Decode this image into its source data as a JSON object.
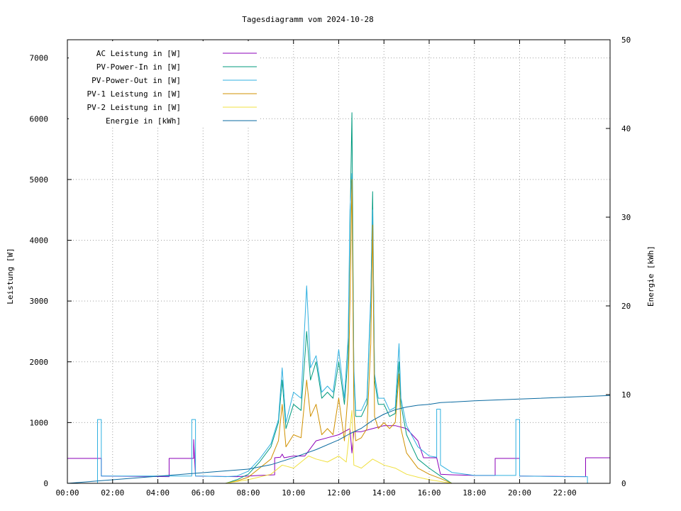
{
  "chart_data": {
    "type": "line",
    "title": "Tagesdiagramm vom 2024-10-28",
    "ylabel": "Leistung [W]",
    "y2label": "Energie [kWh]",
    "xlim": [
      "00:00",
      "24:00"
    ],
    "ylim": [
      0,
      7300
    ],
    "y2lim": [
      0,
      50
    ],
    "xticks": [
      "00:00",
      "02:00",
      "04:00",
      "06:00",
      "08:00",
      "10:00",
      "12:00",
      "14:00",
      "16:00",
      "18:00",
      "20:00",
      "22:00"
    ],
    "yticks": [
      0,
      1000,
      2000,
      3000,
      4000,
      5000,
      6000,
      7000
    ],
    "y2ticks": [
      0,
      10,
      20,
      30,
      40,
      50
    ],
    "grid": true,
    "legend_position": "top-left",
    "series": [
      {
        "name": "AC Leistung in [W]",
        "color": "#8b00b8",
        "axis": "y",
        "x": [
          "00:00",
          "01:30",
          "01:30",
          "01:35",
          "04:30",
          "04:30",
          "05:30",
          "05:35",
          "05:35",
          "05:40",
          "07:30",
          "08:30",
          "09:10",
          "09:10",
          "09:25",
          "09:30",
          "09:35",
          "10:00",
          "10:30",
          "11:00",
          "11:30",
          "12:00",
          "12:30",
          "12:35",
          "12:40",
          "13:00",
          "13:30",
          "14:00",
          "14:30",
          "15:00",
          "15:30",
          "15:45",
          "16:10",
          "16:20",
          "16:30",
          "17:00",
          "18:00",
          "18:55",
          "18:55",
          "20:00",
          "20:00",
          "20:05",
          "22:55",
          "22:55",
          "24:00"
        ],
        "y": [
          410,
          410,
          120,
          120,
          110,
          410,
          410,
          410,
          720,
          120,
          110,
          130,
          140,
          420,
          430,
          480,
          420,
          450,
          450,
          700,
          750,
          800,
          900,
          500,
          850,
          850,
          900,
          950,
          950,
          900,
          700,
          420,
          420,
          420,
          150,
          140,
          130,
          130,
          410,
          410,
          120,
          120,
          110,
          420,
          420
        ]
      },
      {
        "name": "PV-Power-In in [W]",
        "color": "#009a7e",
        "axis": "y",
        "x": [
          "00:00",
          "07:00",
          "07:30",
          "08:00",
          "08:30",
          "09:00",
          "09:20",
          "09:30",
          "09:40",
          "10:00",
          "10:20",
          "10:35",
          "10:45",
          "11:00",
          "11:15",
          "11:30",
          "11:45",
          "12:00",
          "12:15",
          "12:25",
          "12:30",
          "12:35",
          "12:40",
          "12:45",
          "13:00",
          "13:15",
          "13:25",
          "13:30",
          "13:35",
          "13:45",
          "14:00",
          "14:15",
          "14:30",
          "14:40",
          "14:45",
          "15:00",
          "15:30",
          "16:00",
          "16:30",
          "17:00",
          "24:00"
        ],
        "y": [
          0,
          0,
          60,
          150,
          350,
          600,
          1000,
          1700,
          900,
          1300,
          1200,
          2500,
          1700,
          2000,
          1400,
          1500,
          1400,
          2000,
          1300,
          2100,
          4200,
          6100,
          1800,
          1100,
          1100,
          1300,
          3000,
          4800,
          1700,
          1300,
          1300,
          1100,
          1150,
          2000,
          1300,
          800,
          400,
          250,
          120,
          0,
          0
        ]
      },
      {
        "name": "PV-Power-Out in [W]",
        "color": "#30b0e0",
        "axis": "y",
        "x": [
          "00:00",
          "01:20",
          "01:20",
          "01:25",
          "01:30",
          "01:30",
          "01:35",
          "05:30",
          "05:30",
          "05:35",
          "05:40",
          "05:40",
          "06:00",
          "07:00",
          "07:30",
          "08:00",
          "08:30",
          "09:00",
          "09:20",
          "09:30",
          "09:40",
          "10:00",
          "10:20",
          "10:35",
          "10:45",
          "11:00",
          "11:15",
          "11:30",
          "11:45",
          "12:00",
          "12:15",
          "12:25",
          "12:30",
          "12:35",
          "12:40",
          "12:45",
          "13:00",
          "13:15",
          "13:25",
          "13:30",
          "13:35",
          "13:45",
          "14:00",
          "14:15",
          "14:30",
          "14:40",
          "14:45",
          "15:00",
          "15:30",
          "16:00",
          "16:20",
          "16:20",
          "16:25",
          "16:30",
          "16:30",
          "17:00",
          "18:00",
          "19:50",
          "19:50",
          "19:55",
          "20:00",
          "20:00",
          "22:00",
          "23:00",
          "23:00",
          "24:00"
        ],
        "y": [
          0,
          0,
          1050,
          1050,
          1050,
          120,
          120,
          120,
          1050,
          1050,
          1050,
          120,
          120,
          110,
          120,
          200,
          400,
          650,
          1050,
          1900,
          1000,
          1500,
          1400,
          3250,
          1900,
          2100,
          1500,
          1600,
          1500,
          2200,
          1400,
          2400,
          4500,
          5100,
          1900,
          1200,
          1200,
          1400,
          3100,
          4500,
          1800,
          1400,
          1400,
          1200,
          1250,
          2300,
          1400,
          950,
          600,
          450,
          430,
          1220,
          1220,
          1220,
          300,
          180,
          130,
          130,
          1050,
          1050,
          1050,
          120,
          110,
          110,
          0,
          0
        ]
      },
      {
        "name": "PV-1 Leistung in [W]",
        "color": "#d09000",
        "axis": "y",
        "x": [
          "00:00",
          "07:00",
          "07:30",
          "08:00",
          "08:30",
          "09:00",
          "09:20",
          "09:30",
          "09:40",
          "10:00",
          "10:20",
          "10:35",
          "10:45",
          "11:00",
          "11:15",
          "11:30",
          "11:45",
          "12:00",
          "12:15",
          "12:25",
          "12:30",
          "12:35",
          "12:40",
          "12:45",
          "13:00",
          "13:15",
          "13:25",
          "13:30",
          "13:35",
          "13:45",
          "14:00",
          "14:15",
          "14:30",
          "14:40",
          "14:45",
          "15:00",
          "15:30",
          "16:00",
          "16:30",
          "17:00",
          "24:00"
        ],
        "y": [
          0,
          0,
          40,
          100,
          250,
          400,
          700,
          1300,
          600,
          800,
          750,
          1700,
          1100,
          1300,
          800,
          900,
          800,
          1400,
          700,
          1500,
          3000,
          5000,
          1200,
          700,
          750,
          900,
          2300,
          4250,
          1100,
          900,
          1000,
          900,
          1000,
          1800,
          900,
          500,
          250,
          150,
          80,
          0,
          0
        ]
      },
      {
        "name": "PV-2 Leistung in [W]",
        "color": "#f0e040",
        "axis": "y",
        "x": [
          "00:00",
          "07:00",
          "08:00",
          "09:00",
          "09:30",
          "10:00",
          "10:40",
          "11:00",
          "11:30",
          "12:00",
          "12:20",
          "12:35",
          "12:40",
          "13:00",
          "13:30",
          "14:00",
          "14:30",
          "15:00",
          "15:30",
          "16:00",
          "16:30",
          "17:00",
          "24:00"
        ],
        "y": [
          0,
          0,
          60,
          150,
          300,
          250,
          450,
          400,
          350,
          450,
          350,
          1200,
          300,
          250,
          400,
          300,
          250,
          150,
          100,
          60,
          30,
          0,
          0
        ]
      },
      {
        "name": "Energie in [kWh]",
        "color": "#0a6aa0",
        "axis": "y2",
        "x": [
          "00:00",
          "01:30",
          "03:00",
          "05:00",
          "06:00",
          "07:00",
          "08:00",
          "09:00",
          "10:00",
          "11:00",
          "12:00",
          "12:30",
          "13:00",
          "13:30",
          "14:00",
          "14:30",
          "15:00",
          "15:30",
          "16:00",
          "16:30",
          "18:00",
          "20:00",
          "22:00",
          "24:00"
        ],
        "y": [
          0,
          0.3,
          0.6,
          1.0,
          1.2,
          1.4,
          1.6,
          2.1,
          2.9,
          3.8,
          4.9,
          5.6,
          6.2,
          7.1,
          7.8,
          8.3,
          8.6,
          8.8,
          8.9,
          9.1,
          9.3,
          9.5,
          9.7,
          9.9
        ]
      }
    ]
  }
}
